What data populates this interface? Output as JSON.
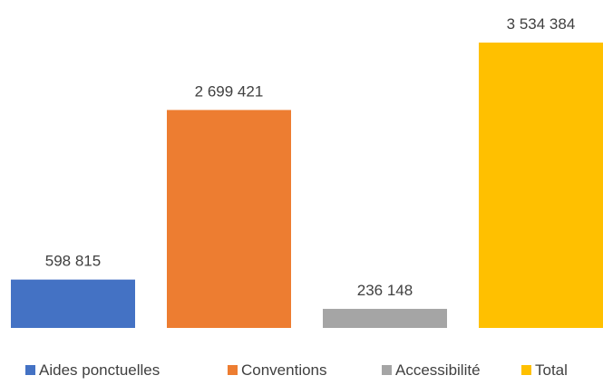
{
  "chart_data": {
    "type": "bar",
    "categories": [
      "Aides ponctuelles",
      "Conventions",
      "Accessibilité",
      "Total"
    ],
    "values": [
      598815,
      2699421,
      236148,
      3534384
    ],
    "data_labels": [
      "598 815",
      "2 699 421",
      "236 148",
      "3 534 384"
    ],
    "colors": [
      "#4472C4",
      "#ED7D31",
      "#A5A5A5",
      "#FFC000"
    ],
    "legend": {
      "position": "bottom",
      "entries": [
        "Aides ponctuelles",
        "Conventions",
        "Accessibilité",
        "Total"
      ]
    },
    "ylim": [
      0,
      3534384
    ],
    "grid": false
  }
}
